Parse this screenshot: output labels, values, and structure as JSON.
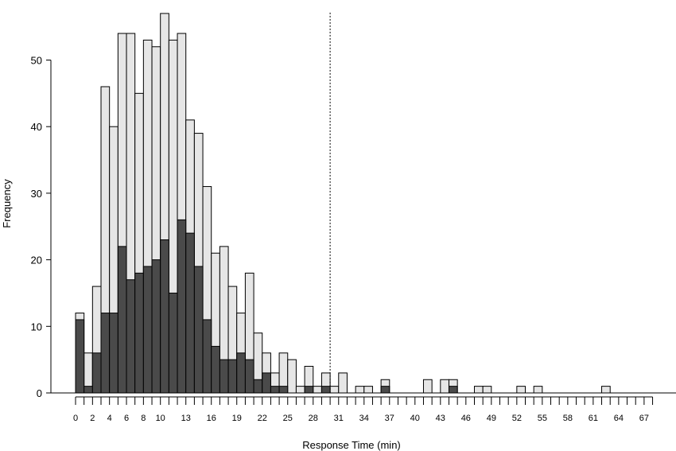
{
  "chart_data": {
    "type": "bar",
    "stacked": "overlay",
    "title": "",
    "xlabel": "Response Time (min)",
    "ylabel": "Frequency",
    "xlim": [
      0,
      68
    ],
    "ylim": [
      0,
      57
    ],
    "grid": false,
    "legend": "none",
    "bin_width_min": 1,
    "bin_starts": [
      0,
      1,
      2,
      3,
      4,
      5,
      6,
      7,
      8,
      9,
      10,
      11,
      12,
      13,
      14,
      15,
      16,
      17,
      18,
      19,
      20,
      21,
      22,
      23,
      24,
      25,
      26,
      27,
      28,
      29,
      30,
      31,
      32,
      33,
      34,
      35,
      36,
      37,
      38,
      39,
      40,
      41,
      42,
      43,
      44,
      45,
      46,
      47,
      48,
      49,
      50,
      51,
      52,
      53,
      54,
      55,
      56,
      57,
      58,
      59,
      60,
      61,
      62,
      63,
      64,
      65,
      66,
      67
    ],
    "series": [
      {
        "color": "#e6e6e6",
        "values": [
          12,
          6,
          16,
          46,
          40,
          54,
          54,
          45,
          53,
          52,
          57,
          53,
          54,
          41,
          39,
          31,
          21,
          22,
          16,
          12,
          18,
          9,
          6,
          3,
          6,
          5,
          1,
          4,
          1,
          3,
          1,
          3,
          0,
          1,
          1,
          0,
          2,
          0,
          0,
          0,
          0,
          2,
          0,
          2,
          2,
          0,
          0,
          1,
          1,
          0,
          0,
          0,
          1,
          0,
          1,
          0,
          0,
          0,
          0,
          0,
          0,
          0,
          1,
          0,
          0,
          0,
          0,
          0
        ]
      },
      {
        "color": "#4a4a4a",
        "values": [
          11,
          1,
          6,
          12,
          12,
          22,
          17,
          18,
          19,
          20,
          23,
          15,
          26,
          24,
          19,
          11,
          7,
          5,
          5,
          6,
          5,
          2,
          3,
          1,
          1,
          0,
          0,
          1,
          0,
          1,
          0,
          0,
          0,
          0,
          0,
          0,
          1,
          0,
          0,
          0,
          0,
          0,
          0,
          0,
          1,
          0,
          0,
          0,
          0,
          0,
          0,
          0,
          0,
          0,
          0,
          0,
          0,
          0,
          0,
          0,
          0,
          0,
          0,
          0,
          0,
          0,
          0,
          0
        ]
      }
    ],
    "reference_line": {
      "x": 30,
      "style": "dotted"
    },
    "xticks": [
      0,
      2,
      4,
      6,
      8,
      10,
      13,
      16,
      19,
      22,
      25,
      28,
      31,
      34,
      37,
      40,
      43,
      46,
      49,
      52,
      55,
      58,
      61,
      64,
      67
    ],
    "yticks": [
      0,
      10,
      20,
      30,
      40,
      50
    ]
  }
}
